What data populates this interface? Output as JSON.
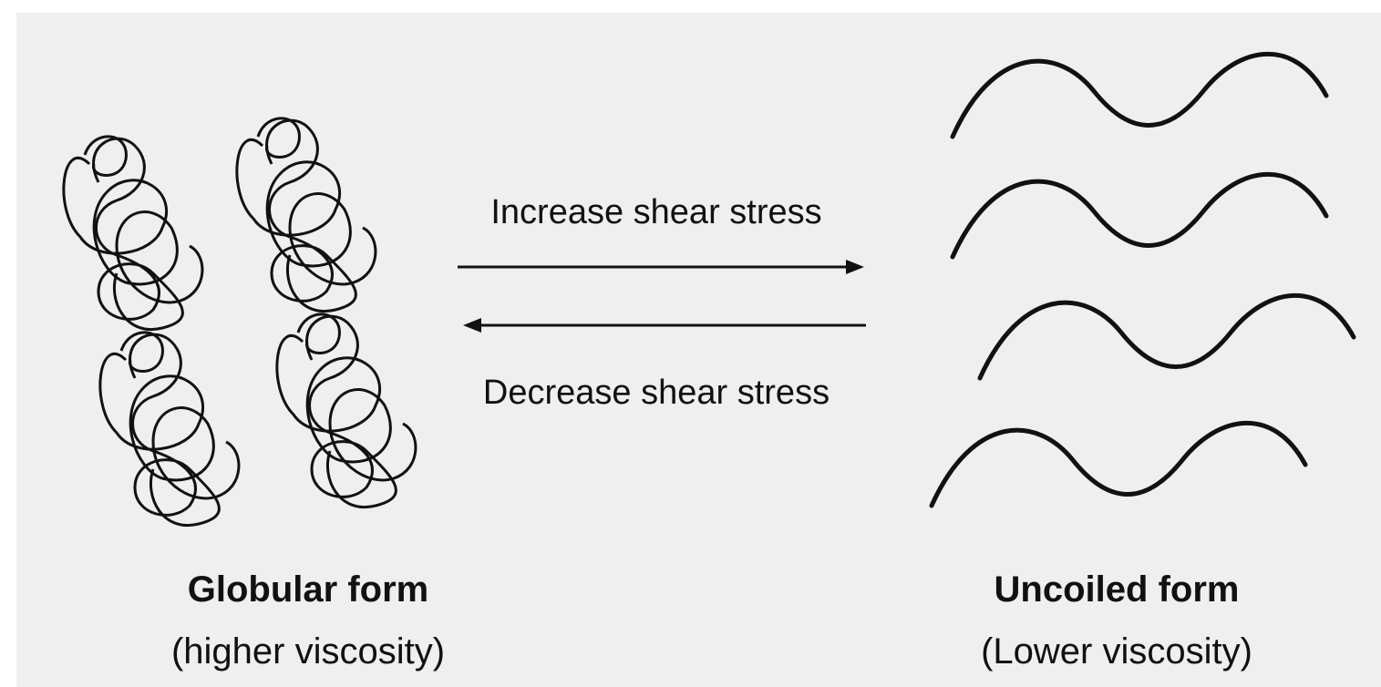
{
  "arrows": [
    {
      "label": "Increase shear stress"
    },
    {
      "label": "Decrease shear stress"
    }
  ],
  "left": {
    "title": "Globular form",
    "subtitle": "(higher viscosity)"
  },
  "right": {
    "title": "Uncoiled form",
    "subtitle": "(Lower viscosity)"
  }
}
